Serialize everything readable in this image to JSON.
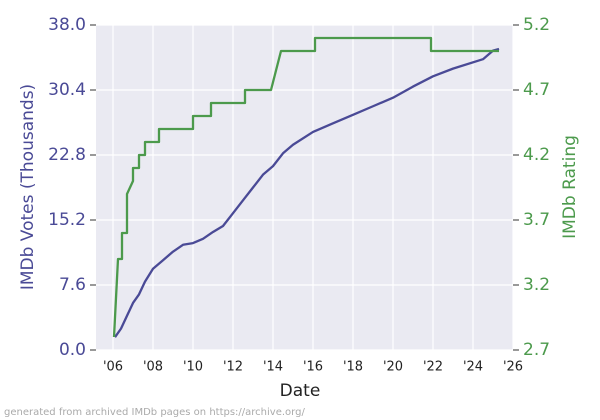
{
  "chart_data": {
    "type": "line",
    "x_label": "Date",
    "y_label": "IMDb Votes (Thousands)",
    "y2_label": "IMDb Rating",
    "footer": "generated from archived IMDb pages on https://archive.org/",
    "xlim": [
      2005.15,
      2026
    ],
    "xticks": [
      {
        "value": 2006,
        "label": "'06"
      },
      {
        "value": 2008,
        "label": "'08"
      },
      {
        "value": 2010,
        "label": "'10"
      },
      {
        "value": 2012,
        "label": "'12"
      },
      {
        "value": 2014,
        "label": "'14"
      },
      {
        "value": 2016,
        "label": "'16"
      },
      {
        "value": 2018,
        "label": "'18"
      },
      {
        "value": 2020,
        "label": "'20"
      },
      {
        "value": 2022,
        "label": "'22"
      },
      {
        "value": 2024,
        "label": "'24"
      },
      {
        "value": 2026,
        "label": "'26"
      }
    ],
    "ylim": [
      0,
      38
    ],
    "yticks": [
      {
        "value": 0,
        "label": "0.0"
      },
      7.6,
      15.2,
      22.8,
      30.4,
      {
        "value": 38,
        "label": "38.0"
      }
    ],
    "y2lim": [
      2.7,
      5.2
    ],
    "y2ticks": [
      2.7,
      3.2,
      3.7,
      4.2,
      4.7,
      5.2
    ],
    "grid": true,
    "series": [
      {
        "name": "IMDb Votes (Thousands)",
        "color": "#4a4a96",
        "x": [
          2006.1,
          2006.4,
          2006.7,
          2007.0,
          2007.3,
          2007.6,
          2008.0,
          2008.5,
          2009.0,
          2009.5,
          2010.0,
          2010.5,
          2011.0,
          2011.5,
          2012.0,
          2012.5,
          2013.0,
          2013.5,
          2014.0,
          2014.5,
          2015.0,
          2016.0,
          2017.0,
          2018.0,
          2019.0,
          2020.0,
          2021.0,
          2022.0,
          2023.0,
          2024.5,
          2025.0,
          2025.3
        ],
        "values": [
          1.5,
          2.5,
          4.0,
          5.5,
          6.5,
          8.0,
          9.5,
          10.5,
          11.5,
          12.3,
          12.5,
          13.0,
          13.8,
          14.5,
          16.0,
          17.5,
          19.0,
          20.5,
          21.5,
          23.0,
          24.0,
          25.5,
          26.5,
          27.5,
          28.5,
          29.5,
          30.8,
          32.0,
          32.9,
          34.0,
          35.0,
          35.2
        ]
      },
      {
        "name": "IMDb Rating",
        "color": "#4c9a4c",
        "axis": "y2",
        "x": [
          2006.05,
          2006.25,
          2006.45,
          2006.45,
          2006.7,
          2006.7,
          2007.0,
          2007.0,
          2007.3,
          2007.3,
          2007.6,
          2007.6,
          2008.3,
          2008.3,
          2010.0,
          2010.0,
          2010.9,
          2010.9,
          2012.6,
          2012.6,
          2013.9,
          2014.4,
          2016.1,
          2016.1,
          2021.9,
          2021.9,
          2025.3
        ],
        "values": [
          2.8,
          3.4,
          3.4,
          3.6,
          3.6,
          3.9,
          4.0,
          4.1,
          4.1,
          4.2,
          4.2,
          4.3,
          4.3,
          4.4,
          4.4,
          4.5,
          4.5,
          4.6,
          4.6,
          4.7,
          4.7,
          5.0,
          5.0,
          5.1,
          5.1,
          5.0,
          5.0
        ]
      }
    ]
  }
}
